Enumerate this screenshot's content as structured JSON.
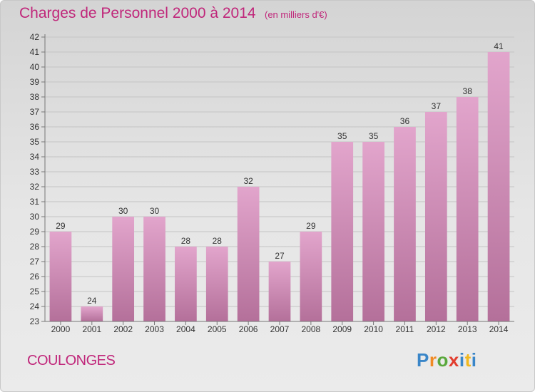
{
  "title": "Charges de Personnel 2000 à 2014",
  "subtitle": "(en milliers d'€)",
  "commune": "COULONGES",
  "logo": "Proxiti",
  "colors": {
    "accent": "#c0267a",
    "bar_top": "#e2a5cc",
    "bar_bottom": "#b4709a"
  },
  "chart_data": {
    "type": "bar",
    "title": "Charges de Personnel 2000 à 2014",
    "subtitle": "(en milliers d'€)",
    "categories": [
      "2000",
      "2001",
      "2002",
      "2003",
      "2004",
      "2005",
      "2006",
      "2007",
      "2008",
      "2009",
      "2010",
      "2011",
      "2012",
      "2013",
      "2014"
    ],
    "values": [
      29,
      24,
      30,
      30,
      28,
      28,
      32,
      27,
      29,
      35,
      35,
      36,
      37,
      38,
      41
    ],
    "ylim": [
      23,
      42
    ],
    "yticks": [
      23,
      24,
      25,
      26,
      27,
      28,
      29,
      30,
      31,
      32,
      33,
      34,
      35,
      36,
      37,
      38,
      39,
      40,
      41,
      42
    ],
    "grid": true,
    "data_labels": true
  }
}
